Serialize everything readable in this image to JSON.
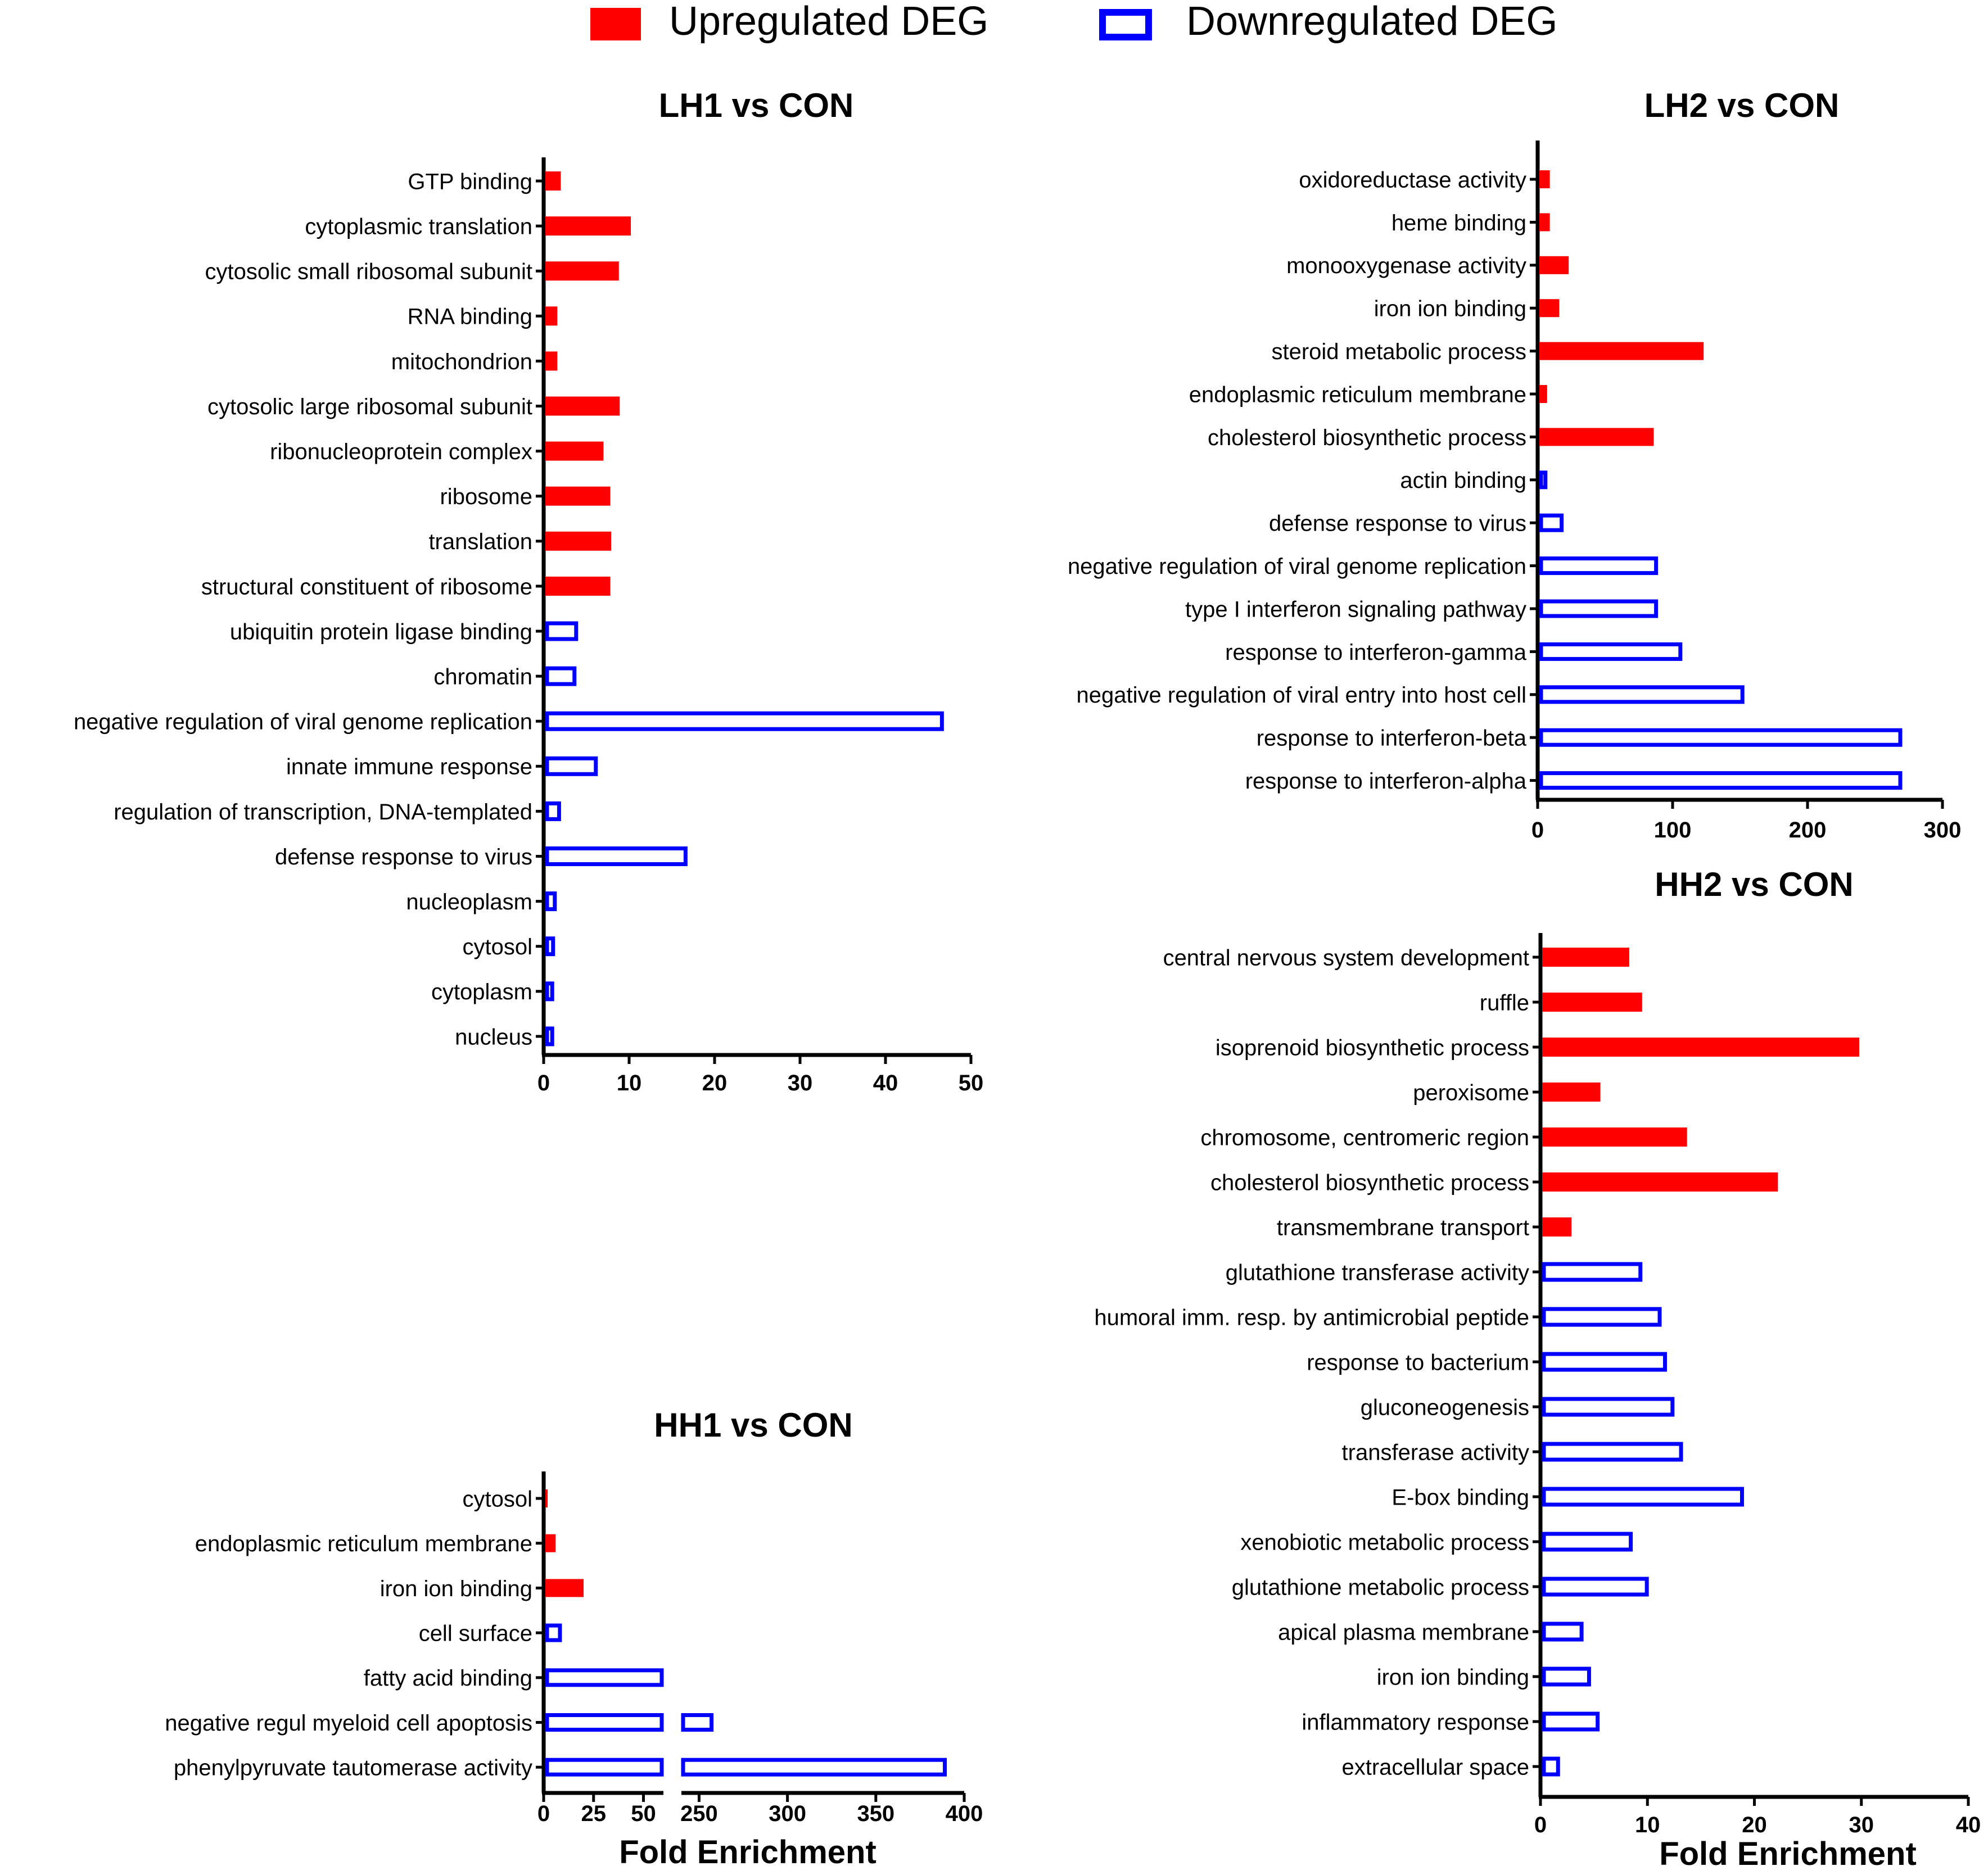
{
  "legend": {
    "up_label": "Upregulated DEG",
    "down_label": "Downregulated DEG",
    "up_color": "#ff0000",
    "down_color": "#0000ff"
  },
  "chart_data": [
    {
      "id": "lh1",
      "type": "bar",
      "orientation": "horizontal",
      "title": "LH1 vs CON",
      "xlabel": "",
      "xlim": [
        0,
        50
      ],
      "xticks": [
        0,
        10,
        20,
        30,
        40,
        50
      ],
      "bars": [
        {
          "label": "GTP binding",
          "value": 2.0,
          "group": "up"
        },
        {
          "label": "cytoplasmic translation",
          "value": 10.2,
          "group": "up"
        },
        {
          "label": "cytosolic small ribosomal subunit",
          "value": 8.8,
          "group": "up"
        },
        {
          "label": "RNA binding",
          "value": 1.6,
          "group": "up"
        },
        {
          "label": "mitochondrion",
          "value": 1.6,
          "group": "up"
        },
        {
          "label": "cytosolic large ribosomal subunit",
          "value": 8.9,
          "group": "up"
        },
        {
          "label": "ribonucleoprotein complex",
          "value": 7.0,
          "group": "up"
        },
        {
          "label": "ribosome",
          "value": 7.8,
          "group": "up"
        },
        {
          "label": "translation",
          "value": 7.9,
          "group": "up"
        },
        {
          "label": "structural constituent of ribosome",
          "value": 7.8,
          "group": "up"
        },
        {
          "label": "ubiquitin protein ligase binding",
          "value": 4.0,
          "group": "down"
        },
        {
          "label": "chromatin",
          "value": 3.8,
          "group": "down"
        },
        {
          "label": "negative regulation of viral genome replication",
          "value": 46.8,
          "group": "down"
        },
        {
          "label": "innate immune response",
          "value": 6.3,
          "group": "down"
        },
        {
          "label": "regulation of transcription, DNA-templated",
          "value": 2.0,
          "group": "down"
        },
        {
          "label": "defense response to virus",
          "value": 16.8,
          "group": "down"
        },
        {
          "label": "nucleoplasm",
          "value": 1.5,
          "group": "down"
        },
        {
          "label": "cytosol",
          "value": 1.3,
          "group": "down"
        },
        {
          "label": "cytoplasm",
          "value": 1.2,
          "group": "down"
        },
        {
          "label": "nucleus",
          "value": 1.2,
          "group": "down"
        }
      ]
    },
    {
      "id": "lh2",
      "type": "bar",
      "orientation": "horizontal",
      "title": "LH2 vs CON",
      "xlabel": "",
      "xlim": [
        0,
        300
      ],
      "xticks": [
        0,
        100,
        200,
        300
      ],
      "bars": [
        {
          "label": "oxidoreductase activity",
          "value": 9,
          "group": "up"
        },
        {
          "label": "heme binding",
          "value": 9,
          "group": "up"
        },
        {
          "label": "monooxygenase activity",
          "value": 23,
          "group": "up"
        },
        {
          "label": "iron ion binding",
          "value": 16,
          "group": "up"
        },
        {
          "label": "steroid metabolic process",
          "value": 123,
          "group": "up"
        },
        {
          "label": "endoplasmic reticulum membrane",
          "value": 7,
          "group": "up"
        },
        {
          "label": "cholesterol biosynthetic process",
          "value": 86,
          "group": "up"
        },
        {
          "label": "actin binding",
          "value": 7,
          "group": "down"
        },
        {
          "label": "defense response to virus",
          "value": 19,
          "group": "down"
        },
        {
          "label": "negative regulation of viral genome replication",
          "value": 89,
          "group": "down"
        },
        {
          "label": "type I interferon signaling pathway",
          "value": 89,
          "group": "down"
        },
        {
          "label": "response to interferon-gamma",
          "value": 107,
          "group": "down"
        },
        {
          "label": "negative regulation of viral entry into host cell",
          "value": 153,
          "group": "down"
        },
        {
          "label": "response to interferon-beta",
          "value": 270,
          "group": "down"
        },
        {
          "label": "response to interferon-alpha",
          "value": 270,
          "group": "down"
        }
      ]
    },
    {
      "id": "hh1",
      "type": "bar",
      "orientation": "horizontal",
      "title": "HH1 vs CON",
      "xlabel": "Fold Enrichment",
      "xlim": [
        0,
        400
      ],
      "axis_break": [
        60,
        240
      ],
      "xticks": [
        0,
        25,
        50,
        250,
        300,
        350,
        400
      ],
      "bars": [
        {
          "label": "cytosol",
          "value": 2,
          "group": "up"
        },
        {
          "label": "endoplasmic reticulum membrane",
          "value": 6,
          "group": "up"
        },
        {
          "label": "iron ion binding",
          "value": 20,
          "group": "up"
        },
        {
          "label": "cell surface",
          "value": 9,
          "group": "down"
        },
        {
          "label": "fatty acid binding",
          "value": 60,
          "group": "down"
        },
        {
          "label": "negative regul myeloid cell apoptosis",
          "value": 258,
          "group": "down"
        },
        {
          "label": "phenylpyruvate tautomerase activity",
          "value": 390,
          "group": "down"
        }
      ]
    },
    {
      "id": "hh2",
      "type": "bar",
      "orientation": "horizontal",
      "title": "HH2 vs CON",
      "xlabel": "Fold Enrichment",
      "xlim": [
        0,
        40
      ],
      "xticks": [
        0,
        10,
        20,
        30,
        40
      ],
      "bars": [
        {
          "label": "central nervous system development",
          "value": 8.3,
          "group": "up"
        },
        {
          "label": "ruffle",
          "value": 9.5,
          "group": "up"
        },
        {
          "label": "isoprenoid biosynthetic process",
          "value": 29.8,
          "group": "up"
        },
        {
          "label": "peroxisome",
          "value": 5.6,
          "group": "up"
        },
        {
          "label": "chromosome, centromeric region",
          "value": 13.7,
          "group": "up"
        },
        {
          "label": "cholesterol biosynthetic process",
          "value": 22.2,
          "group": "up"
        },
        {
          "label": "transmembrane transport",
          "value": 2.9,
          "group": "up"
        },
        {
          "label": "glutathione transferase activity",
          "value": 9.5,
          "group": "down"
        },
        {
          "label": "humoral imm. resp. by antimicrobial peptide",
          "value": 11.3,
          "group": "down"
        },
        {
          "label": "response to bacterium",
          "value": 11.8,
          "group": "down"
        },
        {
          "label": "gluconeogenesis",
          "value": 12.5,
          "group": "down"
        },
        {
          "label": "transferase activity",
          "value": 13.3,
          "group": "down"
        },
        {
          "label": "E-box binding",
          "value": 19.0,
          "group": "down"
        },
        {
          "label": "xenobiotic metabolic process",
          "value": 8.6,
          "group": "down"
        },
        {
          "label": "glutathione metabolic process",
          "value": 10.1,
          "group": "down"
        },
        {
          "label": "apical plasma membrane",
          "value": 4.0,
          "group": "down"
        },
        {
          "label": "iron ion binding",
          "value": 4.7,
          "group": "down"
        },
        {
          "label": "inflammatory response",
          "value": 5.5,
          "group": "down"
        },
        {
          "label": "extracellular space",
          "value": 1.8,
          "group": "down"
        }
      ]
    }
  ]
}
